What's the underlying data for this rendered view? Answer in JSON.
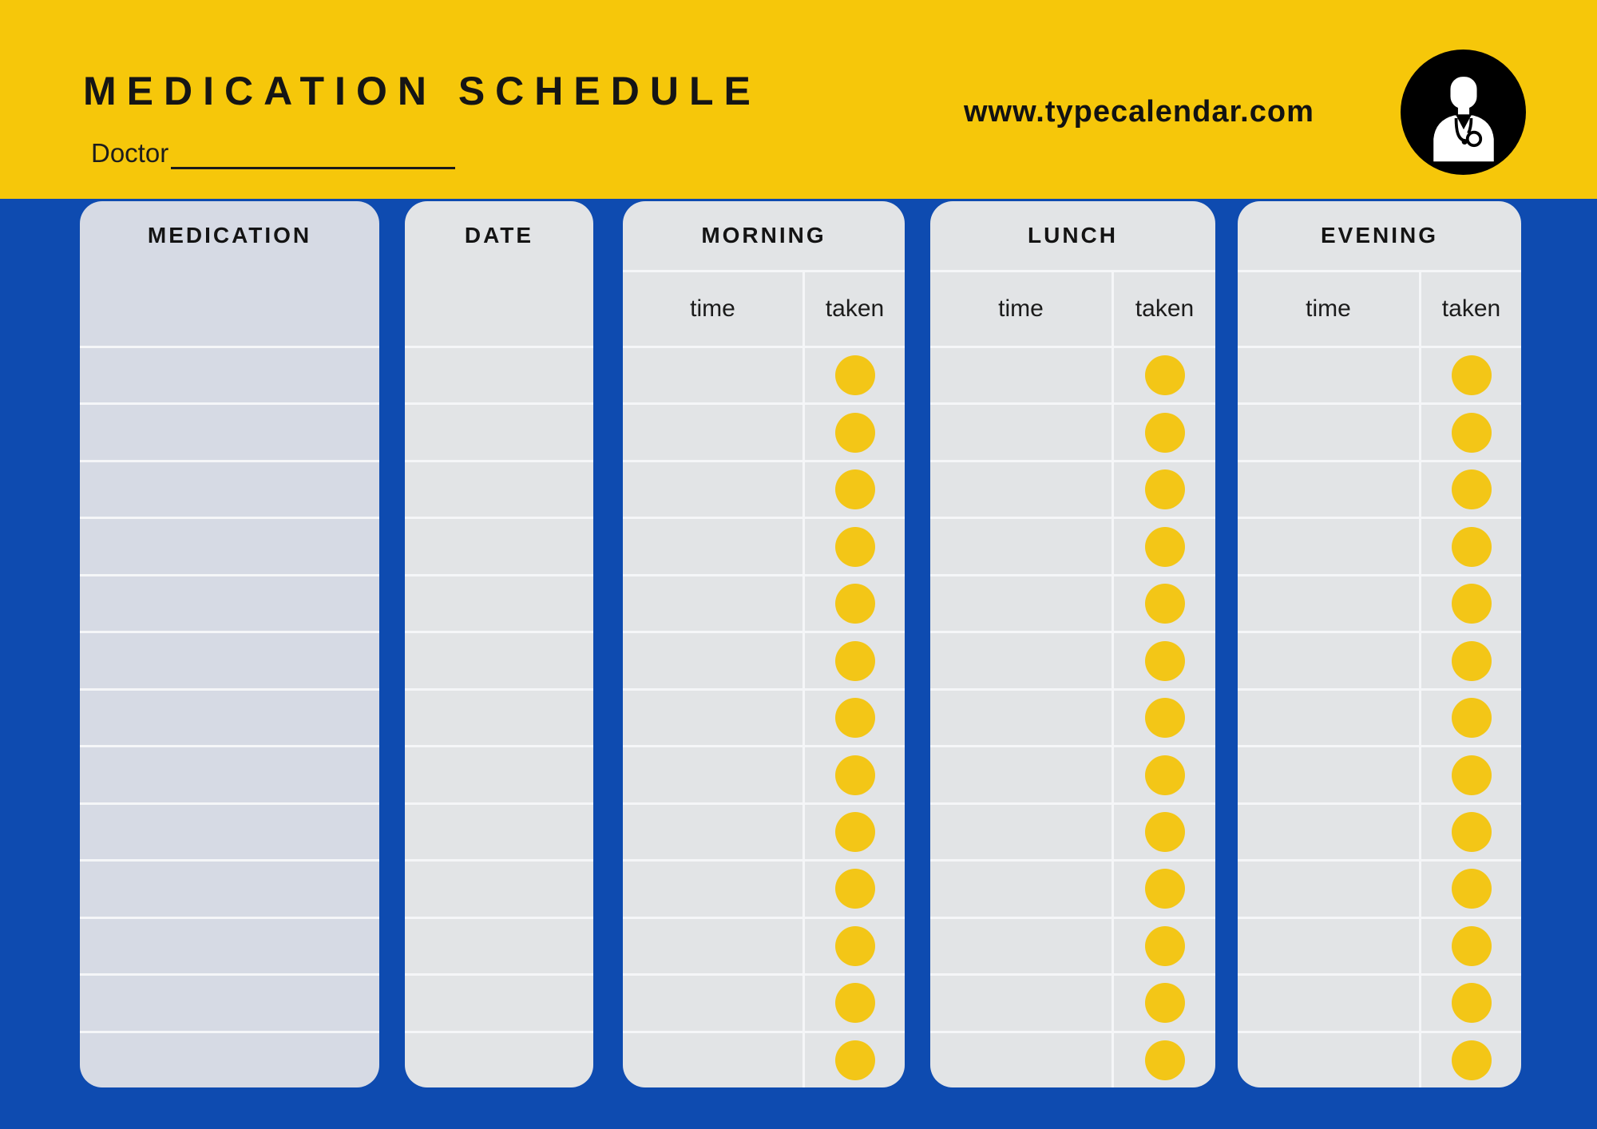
{
  "header": {
    "title": "MEDICATION SCHEDULE",
    "doctor_label": "Doctor",
    "website": "www.typecalendar.com",
    "avatar_icon": "doctor-icon"
  },
  "colors": {
    "banner_yellow": "#F6C70A",
    "background_blue": "#0E4BB0",
    "card_gray": "#E2E4E6",
    "card_lavender": "#D6DAE4",
    "divider_line": "#F5F6F8",
    "dot_yellow": "#F3C617",
    "text_black": "#141414"
  },
  "table": {
    "row_count": 13,
    "sub_headers": {
      "time": "time",
      "taken": "taken"
    },
    "columns": [
      {
        "label": "MEDICATION",
        "type": "single"
      },
      {
        "label": "DATE",
        "type": "single"
      },
      {
        "label": "MORNING",
        "type": "time_taken",
        "taken_marked_rows": [
          1,
          2,
          3,
          4,
          5,
          6,
          7,
          8,
          9,
          10,
          11,
          12,
          13
        ]
      },
      {
        "label": "LUNCH",
        "type": "time_taken",
        "taken_marked_rows": [
          1,
          2,
          3,
          4,
          5,
          6,
          7,
          8,
          9,
          10,
          11,
          12,
          13
        ]
      },
      {
        "label": "EVENING",
        "type": "time_taken",
        "taken_marked_rows": [
          1,
          2,
          3,
          4,
          5,
          6,
          7,
          8,
          9,
          10,
          11,
          12,
          13
        ]
      }
    ]
  }
}
